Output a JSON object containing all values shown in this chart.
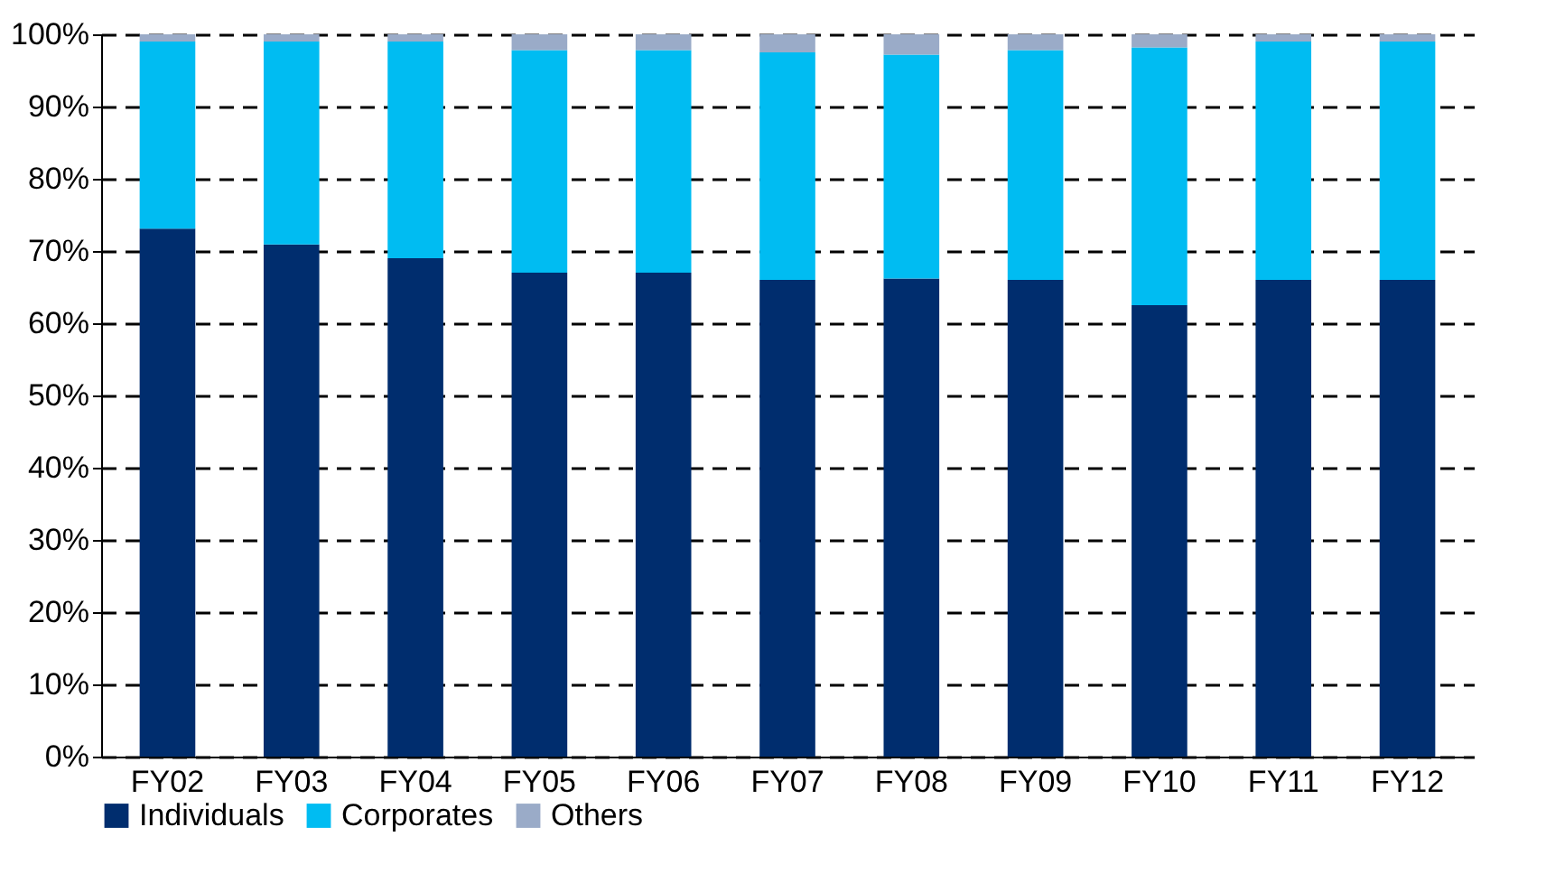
{
  "chart_data": {
    "type": "bar",
    "stacked": true,
    "categories": [
      "FY02",
      "FY03",
      "FY04",
      "FY05",
      "FY06",
      "FY07",
      "FY08",
      "FY09",
      "FY10",
      "FY11",
      "FY12"
    ],
    "series": [
      {
        "name": "Individuals",
        "color": "#002d6e",
        "values": [
          73.1,
          70.9,
          69,
          67,
          67,
          66,
          66.2,
          66,
          62.5,
          66,
          66
        ]
      },
      {
        "name": "Corporates",
        "color": "#00bcf2",
        "values": [
          25.9,
          28.1,
          30,
          30.8,
          30.8,
          31.5,
          31,
          31.8,
          35.7,
          33,
          33
        ]
      },
      {
        "name": "Others",
        "color": "#9aabc8",
        "values": [
          1,
          1,
          1,
          2.2,
          2.2,
          2.5,
          2.8,
          2.2,
          1.8,
          1,
          1
        ]
      }
    ],
    "ylim": [
      0,
      100
    ],
    "yticks": [
      {
        "value": 0,
        "label": "0%"
      },
      {
        "value": 10,
        "label": "10%"
      },
      {
        "value": 20,
        "label": "20%"
      },
      {
        "value": 30,
        "label": "30%"
      },
      {
        "value": 40,
        "label": "40%"
      },
      {
        "value": 50,
        "label": "50%"
      },
      {
        "value": 60,
        "label": "60%"
      },
      {
        "value": 70,
        "label": "70%"
      },
      {
        "value": 80,
        "label": "80%"
      },
      {
        "value": 90,
        "label": "90%"
      },
      {
        "value": 100,
        "label": "100%"
      }
    ],
    "grid": "y",
    "legend": "bottom"
  }
}
